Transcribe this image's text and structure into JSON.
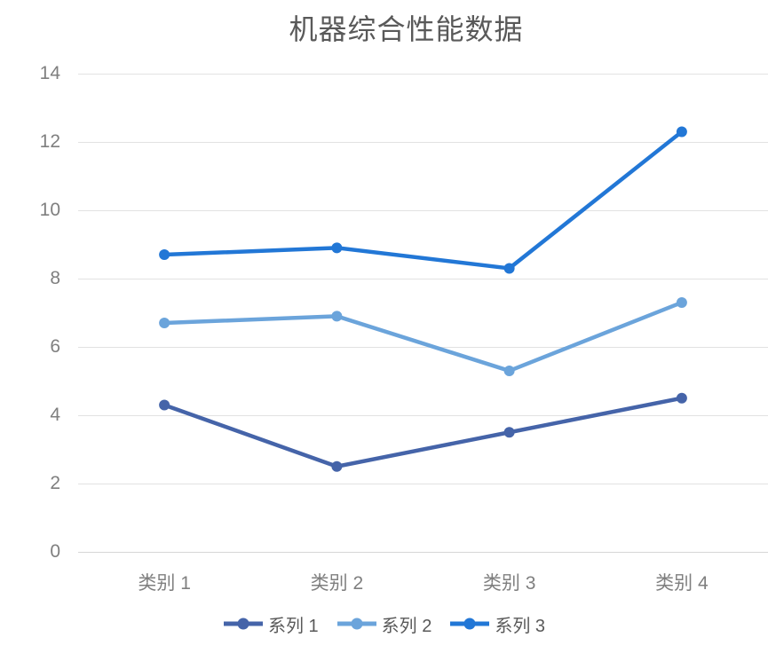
{
  "chart_data": {
    "type": "line",
    "title": "机器综合性能数据",
    "categories": [
      "类别 1",
      "类别 2",
      "类别 3",
      "类别 4"
    ],
    "series": [
      {
        "name": "系列 1",
        "color": "#4564A9",
        "values": [
          4.3,
          2.5,
          3.5,
          4.5
        ]
      },
      {
        "name": "系列 2",
        "color": "#6BA4DB",
        "values": [
          6.7,
          6.9,
          5.3,
          7.3
        ]
      },
      {
        "name": "系列 3",
        "color": "#2277D6",
        "values": [
          8.7,
          8.9,
          8.3,
          12.3
        ]
      }
    ],
    "ylim": [
      0,
      14
    ],
    "yticks": [
      0,
      2,
      4,
      6,
      8,
      10,
      12,
      14
    ],
    "xlabel": "",
    "ylabel": "",
    "grid": true,
    "legend_position": "bottom",
    "grid_color": "#E2E2E2",
    "axis_label_color": "#7F7F7F",
    "title_color": "#595959",
    "background_color": "#FFFFFF"
  }
}
